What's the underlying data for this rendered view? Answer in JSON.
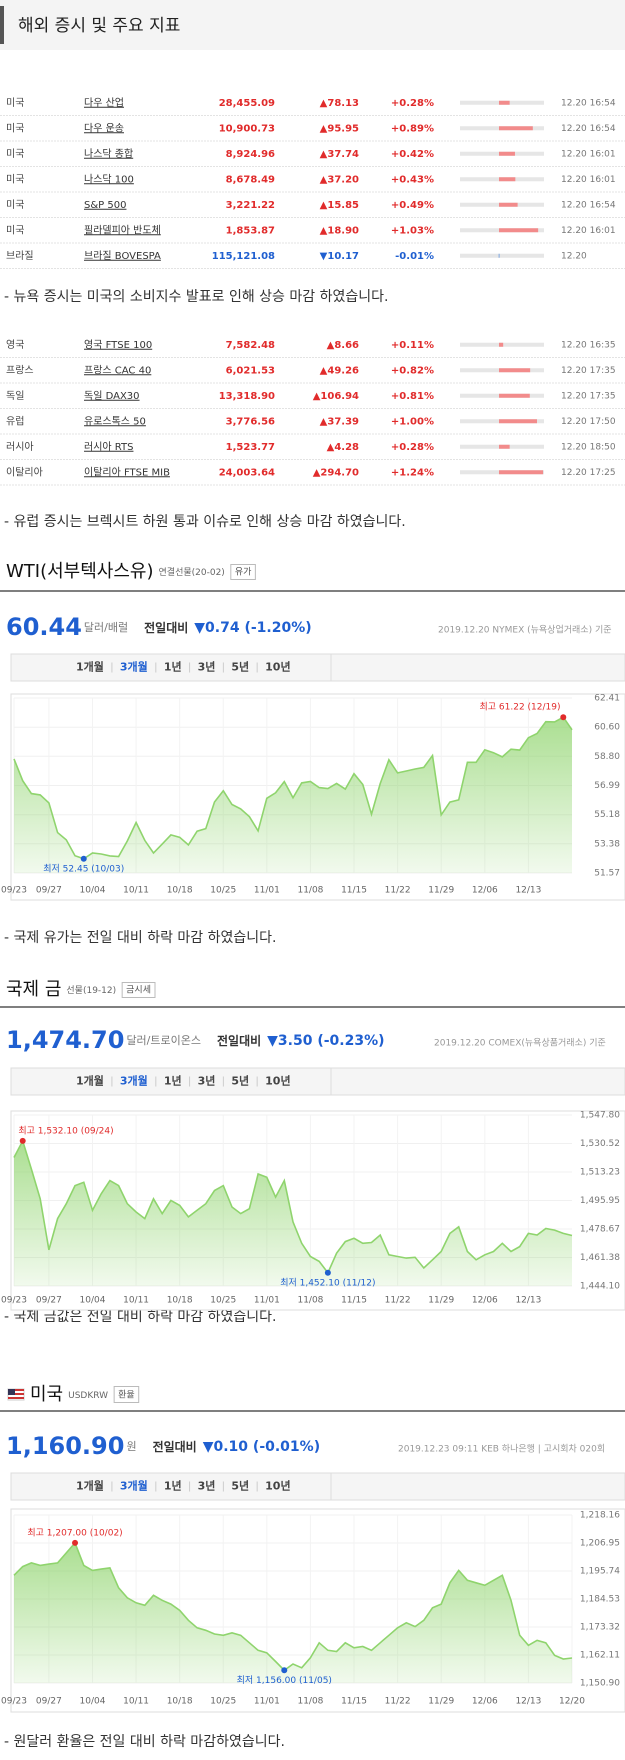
{
  "header": {
    "title": "해외 증시 및 주요 지표"
  },
  "tables": [
    {
      "rows": [
        {
          "country": "미국",
          "name": "다우 산업",
          "price": "28,455.09",
          "change": "▲78.13",
          "change_pct": {
            "value": 0.28,
            "label": "+0.28%"
          },
          "time": "12.20 16:54"
        },
        {
          "country": "미국",
          "name": "다우 운송",
          "price": "10,900.73",
          "change": "▲95.95",
          "change_pct": {
            "value": 0.89,
            "label": "+0.89%"
          },
          "time": "12.20 16:54"
        },
        {
          "country": "미국",
          "name": "나스닥 종합",
          "price": "8,924.96",
          "change": "▲37.74",
          "change_pct": {
            "value": 0.42,
            "label": "+0.42%"
          },
          "time": "12.20 16:01"
        },
        {
          "country": "미국",
          "name": "나스닥 100",
          "price": "8,678.49",
          "change": "▲37.20",
          "change_pct": {
            "value": 0.43,
            "label": "+0.43%"
          },
          "time": "12.20 16:01"
        },
        {
          "country": "미국",
          "name": "S&P 500",
          "price": "3,221.22",
          "change": "▲15.85",
          "change_pct": {
            "value": 0.49,
            "label": "+0.49%"
          },
          "time": "12.20 16:54"
        },
        {
          "country": "미국",
          "name": "필라델피아 반도체",
          "price": "1,853.87",
          "change": "▲18.90",
          "change_pct": {
            "value": 1.03,
            "label": "+1.03%"
          },
          "time": "12.20 16:01"
        },
        {
          "country": "브라질",
          "name": "브라질 BOVESPA",
          "price": "115,121.08",
          "change": "▼10.17",
          "change_pct": {
            "value": -0.01,
            "label": "-0.01%"
          },
          "time": "12.20"
        }
      ]
    },
    {
      "rows": [
        {
          "country": "영국",
          "name": "영국 FTSE 100",
          "price": "7,582.48",
          "change": "▲8.66",
          "change_pct": {
            "value": 0.11,
            "label": "+0.11%"
          },
          "time": "12.20 16:35"
        },
        {
          "country": "프랑스",
          "name": "프랑스 CAC 40",
          "price": "6,021.53",
          "change": "▲49.26",
          "change_pct": {
            "value": 0.82,
            "label": "+0.82%"
          },
          "time": "12.20 17:35"
        },
        {
          "country": "독일",
          "name": "독일 DAX30",
          "price": "13,318.90",
          "change": "▲106.94",
          "change_pct": {
            "value": 0.81,
            "label": "+0.81%"
          },
          "time": "12.20 17:35"
        },
        {
          "country": "유럽",
          "name": "유로스톡스 50",
          "price": "3,776.56",
          "change": "▲37.39",
          "change_pct": {
            "value": 1.0,
            "label": "+1.00%"
          },
          "time": "12.20 17:50"
        },
        {
          "country": "러시아",
          "name": "러시아 RTS",
          "price": "1,523.77",
          "change": "▲4.28",
          "change_pct": {
            "value": 0.28,
            "label": "+0.28%"
          },
          "time": "12.20 18:50"
        },
        {
          "country": "이탈리아",
          "name": "이탈리아 FTSE MIB",
          "price": "24,003.64",
          "change": "▲294.70",
          "change_pct": {
            "value": 1.24,
            "label": "+1.24%"
          },
          "time": "12.20 17:25"
        }
      ]
    }
  ],
  "notes": [
    "- 뉴욕 증시는 미국의 소비지수 발표로 인해 상승 마감 하였습니다.",
    "- 유럽 증시는 브렉시트 하원 통과 이슈로 인해 상승 마감 하였습니다.",
    "- 국제 유가는 전일 대비 하락 마감 하였습니다.",
    "- 국제 금값은 전일 대비 하락 마감 하였습니다.",
    "- 원달러 환율은 전일 대비 하락 마감하였습니다."
  ],
  "charts": [
    {
      "title": "WTI(서부텍사스유)",
      "contract": "연결선물(20-02)",
      "button": "유가",
      "price": "60.44",
      "unit": "달러/배럴",
      "change_label": "전일대비",
      "change": "▼0.74 (-1.20%)",
      "source": "2019.12.20 NYMEX (뉴욕상업거래소) 기준",
      "tabs": [
        "1개월",
        "3개월",
        "1년",
        "3년",
        "5년",
        "10년"
      ],
      "chart_data": {
        "type": "line",
        "color": "#8fd46d",
        "max_label": "최고 61.22 (12/19)",
        "min_label": "최저 52.45 (10/03)",
        "categories": [
          "09/23",
          null,
          null,
          null,
          "09/27",
          null,
          null,
          null,
          null,
          "10/04",
          null,
          null,
          null,
          null,
          "10/11",
          null,
          null,
          null,
          null,
          "10/18",
          null,
          null,
          null,
          null,
          "10/25",
          null,
          null,
          null,
          null,
          "11/01",
          null,
          null,
          null,
          null,
          "11/08",
          null,
          null,
          null,
          null,
          "11/15",
          null,
          null,
          null,
          null,
          "11/22",
          null,
          null,
          null,
          null,
          "11/29",
          null,
          null,
          null,
          null,
          "12/06",
          null,
          null,
          null,
          null,
          "12/13",
          null,
          null,
          null,
          null,
          null
        ],
        "values": [
          58.64,
          57.29,
          56.49,
          56.41,
          55.91,
          54.07,
          53.62,
          52.64,
          52.45,
          52.81,
          52.75,
          52.63,
          52.59,
          53.55,
          54.7,
          53.59,
          52.81,
          53.36,
          53.93,
          53.78,
          53.31,
          54.16,
          54.32,
          55.97,
          56.66,
          55.81,
          55.54,
          55.06,
          54.18,
          56.2,
          56.54,
          57.23,
          56.23,
          57.15,
          57.24,
          56.86,
          56.8,
          57.12,
          56.77,
          57.72,
          57.05,
          55.21,
          57.11,
          58.58,
          57.77,
          57.89,
          58.01,
          58.11,
          58.85,
          55.17,
          55.96,
          56.1,
          58.43,
          58.43,
          59.2,
          59.02,
          58.76,
          59.24,
          59.18,
          59.95,
          60.21,
          60.94,
          60.93,
          61.22,
          60.44
        ],
        "ylim": [
          51.57,
          62.41
        ],
        "yticks": [
          51.57,
          53.38,
          55.18,
          56.99,
          {
            "value": 58.8,
            "label": "58.80"
          },
          {
            "value": 60.6,
            "label": "60.60"
          },
          62.41
        ]
      }
    },
    {
      "title": "국제 금",
      "contract": "선물(19-12)",
      "button": "금시세",
      "price": "1,474.70",
      "unit": "달러/트로이온스",
      "change_label": "전일대비",
      "change": "▼3.50 (-0.23%)",
      "source": "2019.12.20 COMEX(뉴욕상품거래소) 기준",
      "tabs": [
        "1개월",
        "3개월",
        "1년",
        "3년",
        "5년",
        "10년"
      ],
      "chart_data": {
        "type": "line",
        "color": "#8fd46d",
        "max_label": "최고 1,532.10 (09/24)",
        "min_label": "최저 1,452.10 (11/12)",
        "categories": [
          "09/23",
          null,
          null,
          null,
          "09/27",
          null,
          null,
          null,
          null,
          "10/04",
          null,
          null,
          null,
          null,
          "10/11",
          null,
          null,
          null,
          null,
          "10/18",
          null,
          null,
          null,
          null,
          "10/25",
          null,
          null,
          null,
          null,
          "11/01",
          null,
          null,
          null,
          null,
          "11/08",
          null,
          null,
          null,
          null,
          "11/15",
          null,
          null,
          null,
          null,
          "11/22",
          null,
          null,
          null,
          null,
          "11/29",
          null,
          null,
          null,
          null,
          "12/06",
          null,
          null,
          null,
          null,
          "12/13",
          null,
          null,
          null,
          null,
          null
        ],
        "values": [
          1522.0,
          1532.1,
          1515.0,
          1497.0,
          1466.0,
          1485.0,
          1494.0,
          1505.0,
          1507.0,
          1490.0,
          1500.0,
          1508.0,
          1505.0,
          1494.0,
          1489.0,
          1485.0,
          1497.0,
          1488.0,
          1496.0,
          1493.0,
          1486.0,
          1490.0,
          1494.0,
          1502.0,
          1505.0,
          1492.0,
          1488.0,
          1491.0,
          1512.0,
          1510.0,
          1498.0,
          1508.0,
          1483.0,
          1470.0,
          1462.0,
          1459.0,
          1452.1,
          1464.0,
          1471.0,
          1473.0,
          1470.0,
          1470.5,
          1475.0,
          1463.0,
          1462.0,
          1461.0,
          1461.5,
          1455.0,
          1460.0,
          1465.0,
          1476.0,
          1480.0,
          1465.0,
          1460.0,
          1463.0,
          1465.0,
          1470.0,
          1465.0,
          1468.0,
          1476.0,
          1475.0,
          1479.0,
          1478.0,
          1476.0,
          1474.7
        ],
        "ylim": [
          1444.1,
          1547.8
        ],
        "yticks": [
          {
            "value": 1444.1,
            "label": "1,444.10"
          },
          {
            "value": 1461.38,
            "label": "1,461.38"
          },
          {
            "value": 1478.67,
            "label": "1,478.67"
          },
          {
            "value": 1495.95,
            "label": "1,495.95"
          },
          {
            "value": 1513.23,
            "label": "1,513.23"
          },
          {
            "value": 1530.52,
            "label": "1,530.52"
          },
          {
            "value": 1547.8,
            "label": "1,547.80"
          }
        ]
      }
    },
    {
      "title": "미국",
      "contract": "USDKRW",
      "button": "환율",
      "price": "1,160.90",
      "unit": "원",
      "change_label": "전일대비",
      "change": "▼0.10 (-0.01%)",
      "source": "2019.12.23 09:11 KEB 하나은행 | 고시회차 020회",
      "tabs": [
        "1개월",
        "3개월",
        "1년",
        "3년",
        "5년",
        "10년"
      ],
      "chart_data": {
        "type": "line",
        "color": "#8fd46d",
        "max_label": "최고 1,207.00 (10/02)",
        "min_label": "최저 1,156.00 (11/05)",
        "categories": [
          "09/23",
          null,
          null,
          null,
          "09/27",
          null,
          null,
          null,
          null,
          "10/04",
          null,
          null,
          null,
          null,
          "10/11",
          null,
          null,
          null,
          null,
          "10/18",
          null,
          null,
          null,
          null,
          "10/25",
          null,
          null,
          null,
          null,
          "11/01",
          null,
          null,
          null,
          null,
          "11/08",
          null,
          null,
          null,
          null,
          "11/15",
          null,
          null,
          null,
          null,
          "11/22",
          null,
          null,
          null,
          null,
          "11/29",
          null,
          null,
          null,
          null,
          "12/06",
          null,
          null,
          null,
          null,
          "12/13",
          null,
          null,
          null,
          null,
          "12/20"
        ],
        "values": [
          1194.0,
          1197.5,
          1199.0,
          1198.0,
          1198.5,
          1199.0,
          1203.0,
          1207.0,
          1198.0,
          1196.0,
          1196.5,
          1197.0,
          1189.0,
          1185.0,
          1183.0,
          1182.0,
          1186.0,
          1184.0,
          1182.5,
          1180.0,
          1176.0,
          1173.0,
          1172.0,
          1170.5,
          1170.0,
          1171.0,
          1170.0,
          1167.0,
          1164.0,
          1163.0,
          1159.5,
          1156.0,
          1158.5,
          1157.0,
          1161.0,
          1167.0,
          1164.0,
          1163.5,
          1167.0,
          1165.0,
          1165.5,
          1164.0,
          1167.0,
          1170.0,
          1173.0,
          1175.0,
          1173.5,
          1176.0,
          1181.0,
          1182.5,
          1191.0,
          1196.0,
          1192.0,
          1191.0,
          1190.0,
          1192.0,
          1194.0,
          1184.0,
          1170.0,
          1166.0,
          1168.0,
          1167.0,
          1162.0,
          1160.5,
          1160.9
        ],
        "ylim": [
          1150.9,
          1218.16
        ],
        "yticks": [
          {
            "value": 1150.9,
            "label": "1,150.90"
          },
          {
            "value": 1162.11,
            "label": "1,162.11"
          },
          {
            "value": 1173.32,
            "label": "1,173.32"
          },
          {
            "value": 1184.53,
            "label": "1,184.53"
          },
          {
            "value": 1195.74,
            "label": "1,195.74"
          },
          {
            "value": 1206.95,
            "label": "1,206.95"
          },
          {
            "value": 1218.16,
            "label": "1,218.16"
          }
        ]
      }
    }
  ]
}
